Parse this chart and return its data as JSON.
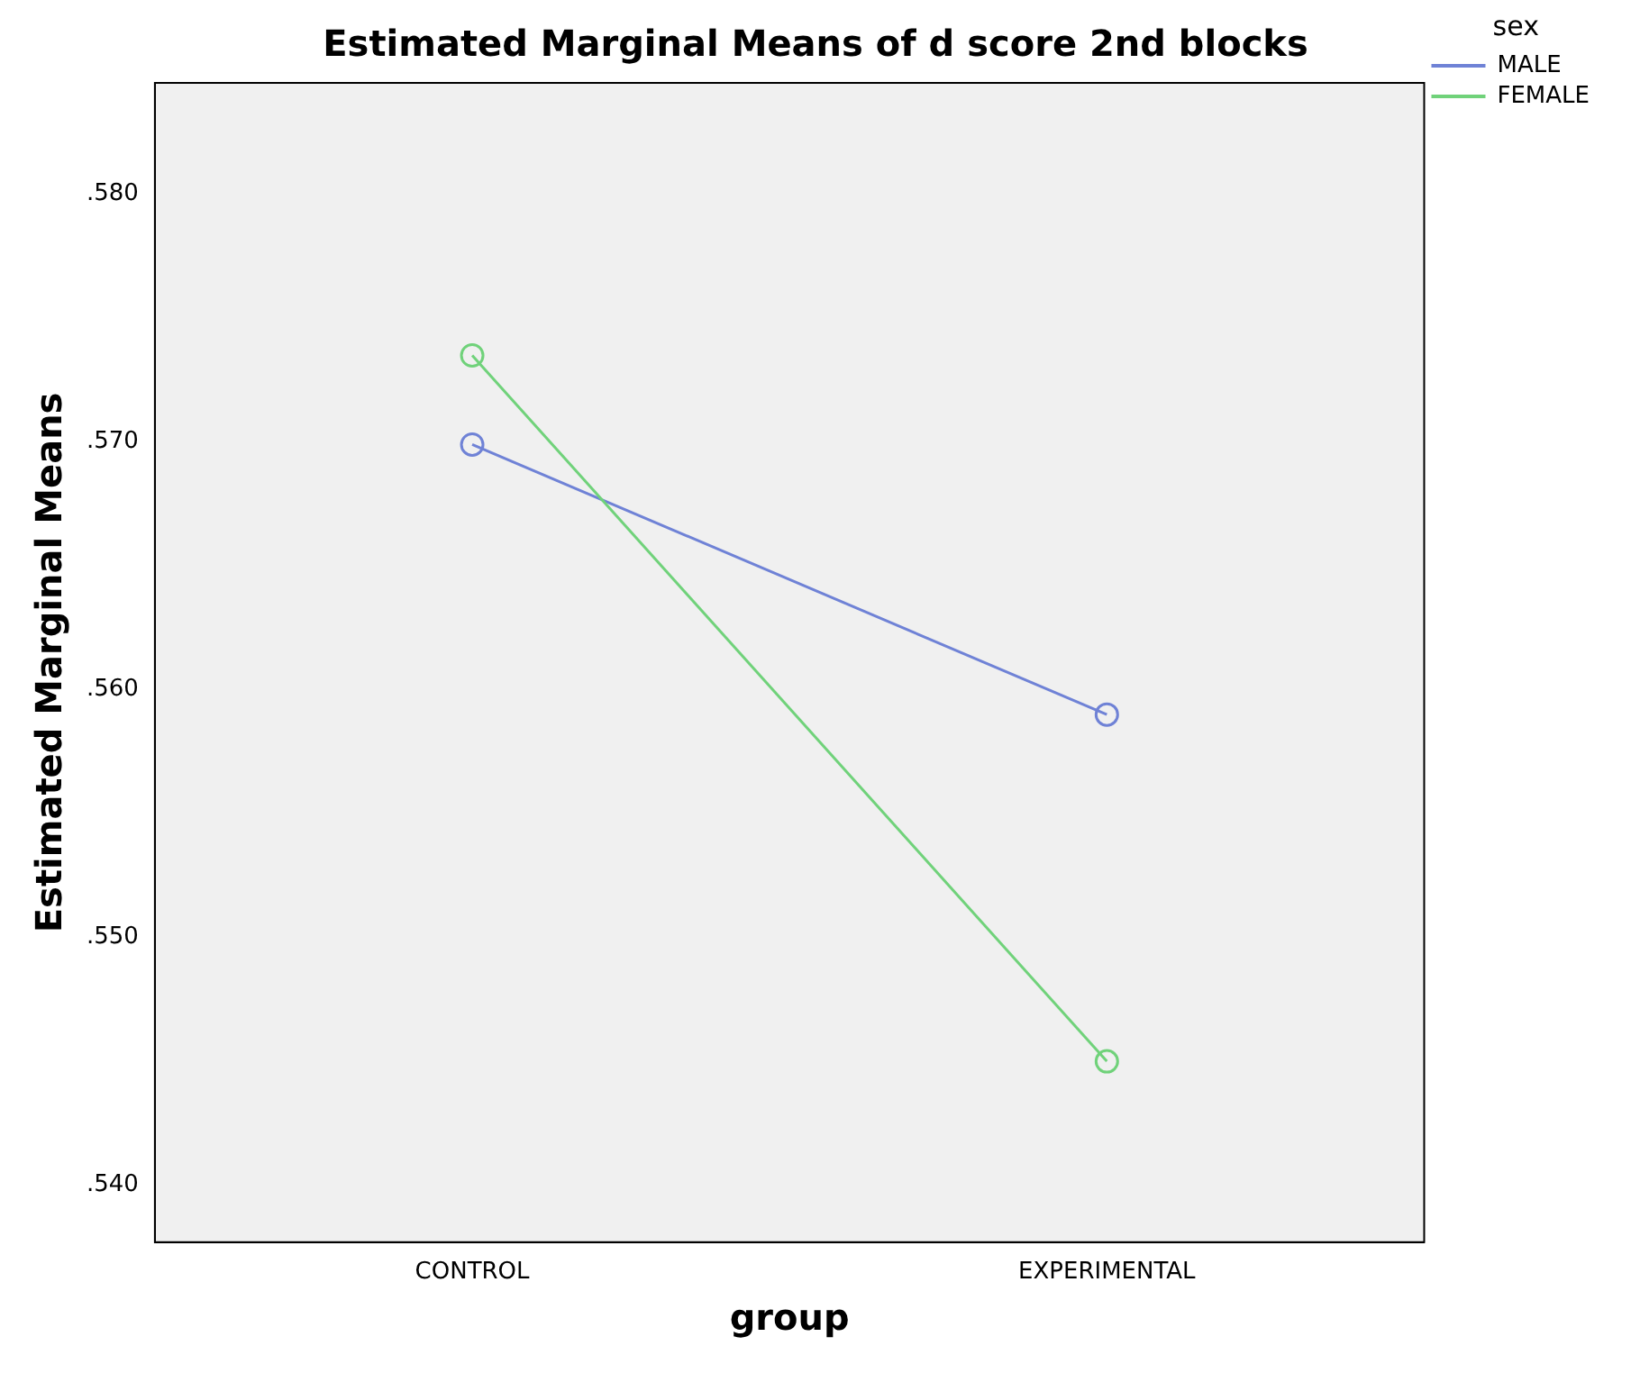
{
  "chart_data": {
    "type": "line",
    "title": "Estimated Marginal Means of d score 2nd blocks",
    "xlabel": "group",
    "ylabel": "Estimated Marginal Means",
    "legend_title": "sex",
    "categories": [
      "CONTROL",
      "EXPERIMENTAL"
    ],
    "series": [
      {
        "name": "MALE",
        "color": "#6f82d6",
        "values": [
          0.5699,
          0.559
        ]
      },
      {
        "name": "FEMALE",
        "color": "#70d27a",
        "values": [
          0.5735,
          0.545
        ]
      }
    ],
    "ylim": [
      0.5377,
      0.5845
    ],
    "yticks": [
      {
        "value": 0.54,
        "label": ".540"
      },
      {
        "value": 0.55,
        "label": ".550"
      },
      {
        "value": 0.56,
        "label": ".560"
      },
      {
        "value": 0.57,
        "label": ".570"
      },
      {
        "value": 0.58,
        "label": ".580"
      }
    ],
    "grid": false,
    "legend": "top right",
    "marker": "circle",
    "line_style": "solid"
  }
}
